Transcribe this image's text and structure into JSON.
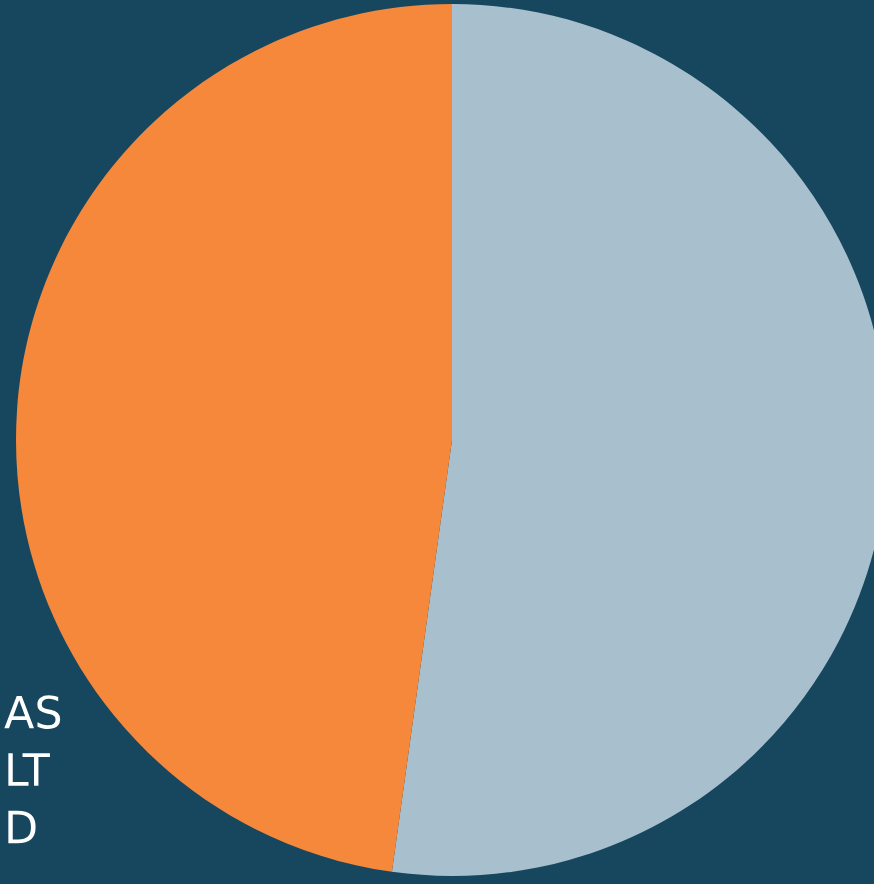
{
  "chart_data": {
    "type": "pie",
    "categories": [
      null,
      null
    ],
    "values": [
      52.2,
      47.8
    ],
    "colors": [
      "#a8c0cd",
      "#f5883b"
    ],
    "annotations": [
      "AS",
      "LT",
      "D"
    ]
  }
}
